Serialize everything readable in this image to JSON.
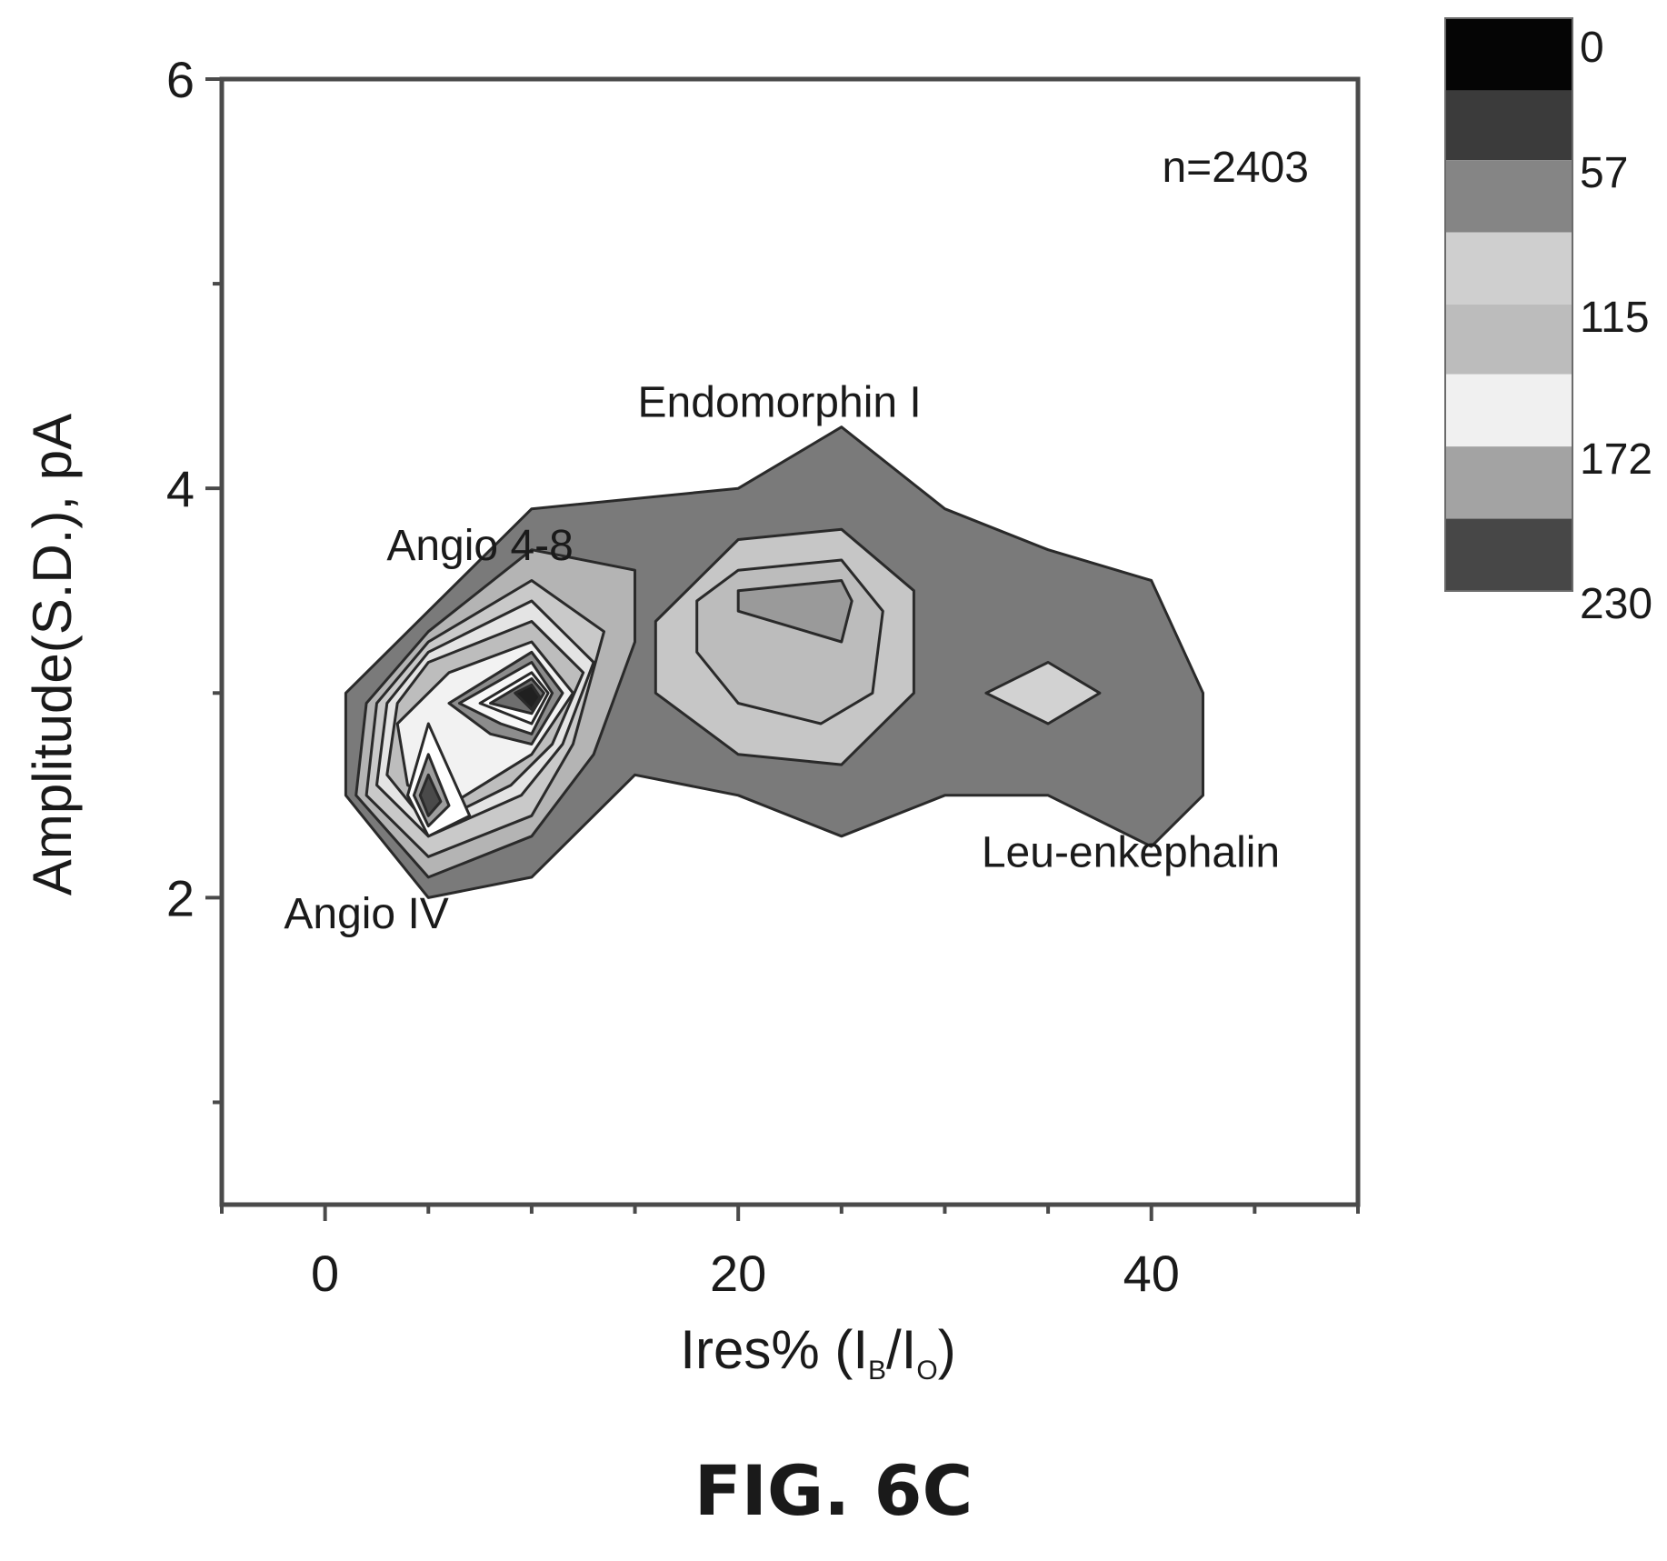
{
  "caption": "FIG. 6C",
  "chart_data": {
    "type": "contour",
    "xlabel": "Ires% (I",
    "xlabel_sub1": "B",
    "xlabel_sep": "/I",
    "xlabel_sub2": "O",
    "xlabel_end": ")",
    "ylabel": "Amplitude(S.D.), pA",
    "xlim": [
      -5,
      50
    ],
    "ylim": [
      0.5,
      6
    ],
    "x_ticks": [
      0,
      20,
      40
    ],
    "x_minor_ticks": [
      -5,
      0,
      5,
      10,
      15,
      20,
      25,
      30,
      35,
      40,
      45,
      50
    ],
    "y_ticks": [
      2,
      4,
      6
    ],
    "y_minor_ticks": [
      1,
      2,
      3,
      4,
      5,
      6
    ],
    "count_label": "n=2403",
    "colorbar": {
      "tick_labels": [
        "0",
        "57",
        "115",
        "172",
        "230"
      ],
      "levels": [
        0,
        29,
        57,
        86,
        115,
        143,
        172,
        201,
        230
      ],
      "colors": [
        "#050505",
        "#3b3b3b",
        "#858585",
        "#cfcfcf",
        "#bcbcbc",
        "#f0f0f0",
        "#a3a3a3",
        "#474747"
      ]
    },
    "annotations": [
      {
        "text": "Endomorphin I",
        "x": 22,
        "y": 4.35
      },
      {
        "text": "Angio 4-8",
        "x": 7.5,
        "y": 3.65
      },
      {
        "text": "Angio IV",
        "x": 2,
        "y": 1.85
      },
      {
        "text": "Leu-enkephalin",
        "x": 39,
        "y": 2.15
      }
    ],
    "contours": [
      {
        "fill": "#7a7a7a",
        "points": [
          [
            1,
            3.0
          ],
          [
            5,
            3.4
          ],
          [
            10,
            3.9
          ],
          [
            20,
            4.0
          ],
          [
            25,
            4.3
          ],
          [
            30,
            3.9
          ],
          [
            35,
            3.7
          ],
          [
            40,
            3.55
          ],
          [
            42.5,
            3.0
          ],
          [
            42.5,
            2.5
          ],
          [
            40,
            2.25
          ],
          [
            35,
            2.5
          ],
          [
            30,
            2.5
          ],
          [
            25,
            2.3
          ],
          [
            20,
            2.5
          ],
          [
            15,
            2.6
          ],
          [
            10,
            2.1
          ],
          [
            5,
            2.0
          ],
          [
            1,
            2.5
          ]
        ]
      },
      {
        "fill": "#c6c6c6",
        "points": [
          [
            16,
            3.35
          ],
          [
            20,
            3.75
          ],
          [
            25,
            3.8
          ],
          [
            28.5,
            3.5
          ],
          [
            28.5,
            3.0
          ],
          [
            25,
            2.65
          ],
          [
            20,
            2.7
          ],
          [
            16,
            3.0
          ]
        ]
      },
      {
        "fill": "#bcbcbc",
        "points": [
          [
            18,
            3.45
          ],
          [
            20,
            3.6
          ],
          [
            25,
            3.65
          ],
          [
            27,
            3.4
          ],
          [
            26.5,
            3.0
          ],
          [
            24,
            2.85
          ],
          [
            20,
            2.95
          ],
          [
            18,
            3.2
          ]
        ]
      },
      {
        "fill": "#9a9a9a",
        "points": [
          [
            20,
            3.5
          ],
          [
            25,
            3.55
          ],
          [
            25.5,
            3.45
          ],
          [
            25,
            3.25
          ],
          [
            20,
            3.4
          ]
        ]
      },
      {
        "fill": "#d2d2d2",
        "points": [
          [
            32,
            3.0
          ],
          [
            35,
            3.15
          ],
          [
            37.5,
            3.0
          ],
          [
            35,
            2.85
          ]
        ]
      },
      {
        "fill": "#b4b4b4",
        "points": [
          [
            2,
            2.95
          ],
          [
            5,
            3.3
          ],
          [
            10,
            3.7
          ],
          [
            15,
            3.6
          ],
          [
            15,
            3.25
          ],
          [
            13,
            2.7
          ],
          [
            10,
            2.3
          ],
          [
            5,
            2.1
          ],
          [
            1.5,
            2.5
          ]
        ]
      },
      {
        "fill": "#c9c9c9",
        "points": [
          [
            2.5,
            2.95
          ],
          [
            5,
            3.25
          ],
          [
            10,
            3.55
          ],
          [
            13.5,
            3.3
          ],
          [
            12,
            2.75
          ],
          [
            10,
            2.4
          ],
          [
            5,
            2.2
          ],
          [
            2,
            2.5
          ]
        ]
      },
      {
        "fill": "#e4e4e4",
        "points": [
          [
            3,
            2.95
          ],
          [
            5,
            3.2
          ],
          [
            10,
            3.45
          ],
          [
            13,
            3.15
          ],
          [
            11.5,
            2.75
          ],
          [
            9.5,
            2.5
          ],
          [
            5,
            2.3
          ],
          [
            2.5,
            2.55
          ]
        ]
      },
      {
        "fill": "#bdbdbd",
        "points": [
          [
            3.5,
            2.95
          ],
          [
            5,
            3.15
          ],
          [
            10,
            3.35
          ],
          [
            12.5,
            3.1
          ],
          [
            11,
            2.75
          ],
          [
            9,
            2.55
          ],
          [
            5,
            2.35
          ],
          [
            3,
            2.6
          ]
        ]
      },
      {
        "fill": "#f2f2f2",
        "points": [
          [
            3.5,
            2.85
          ],
          [
            6,
            3.1
          ],
          [
            10,
            3.25
          ],
          [
            12,
            3.0
          ],
          [
            10,
            2.7
          ],
          [
            6,
            2.45
          ],
          [
            4,
            2.55
          ]
        ]
      },
      {
        "fill": "#8c8c8c",
        "points": [
          [
            6,
            2.95
          ],
          [
            10,
            3.2
          ],
          [
            11.5,
            3.0
          ],
          [
            10,
            2.75
          ],
          [
            8,
            2.8
          ]
        ]
      },
      {
        "fill": "#f7f7f7",
        "points": [
          [
            6.5,
            2.95
          ],
          [
            10,
            3.15
          ],
          [
            11,
            3.0
          ],
          [
            10,
            2.8
          ],
          [
            8.5,
            2.85
          ]
        ]
      },
      {
        "fill": "#ffffff",
        "points": [
          [
            7.5,
            2.95
          ],
          [
            10,
            3.1
          ],
          [
            10.8,
            3.0
          ],
          [
            10,
            2.85
          ]
        ]
      },
      {
        "fill": "#6e6e6e",
        "points": [
          [
            8,
            2.95
          ],
          [
            10,
            3.07
          ],
          [
            10.6,
            3.0
          ],
          [
            10,
            2.9
          ]
        ]
      },
      {
        "fill": "#202020",
        "points": [
          [
            9.2,
            3.0
          ],
          [
            10,
            3.04
          ],
          [
            10.4,
            2.98
          ],
          [
            10,
            2.92
          ]
        ]
      },
      {
        "fill": "#ffffff",
        "points": [
          [
            4,
            2.5
          ],
          [
            5,
            2.85
          ],
          [
            7,
            2.4
          ],
          [
            5,
            2.3
          ]
        ]
      },
      {
        "fill": "#9e9e9e",
        "points": [
          [
            4.3,
            2.5
          ],
          [
            5,
            2.7
          ],
          [
            6,
            2.45
          ],
          [
            5,
            2.35
          ]
        ]
      },
      {
        "fill": "#4a4a4a",
        "points": [
          [
            4.6,
            2.5
          ],
          [
            5,
            2.6
          ],
          [
            5.6,
            2.47
          ],
          [
            5,
            2.4
          ]
        ]
      }
    ]
  }
}
